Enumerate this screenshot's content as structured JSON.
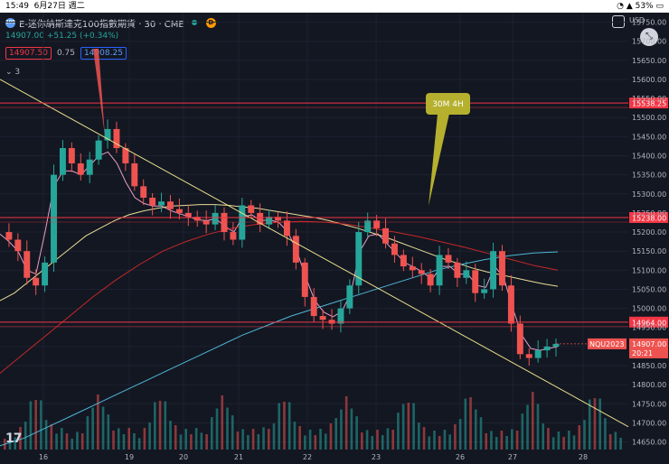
{
  "status_bar": {
    "time": "15:49",
    "date": "6月27日 週二",
    "battery": "53%"
  },
  "header": {
    "logo": "100",
    "symbol_title": "E-迷你納斯達克100指數期貨 · 30 · CME",
    "current_price": "14907.00",
    "change": "+51.25 (+0.34%)",
    "bid": "14907.50",
    "spread": "0.75",
    "ask": "14908.25",
    "indicator_count": "3",
    "currency": "USD"
  },
  "badges": {
    "d": "D"
  },
  "annotations": {
    "callout": "30M 4H"
  },
  "footer_logo": "17",
  "colors": {
    "bg": "#131722",
    "up": "#26a69a",
    "down": "#ef5350",
    "hline": "#f23645",
    "trend": "#e8e08a",
    "ma_pink": "#e6a0c8",
    "ma_yellow": "#e8dc96",
    "ma_red": "#c62828",
    "ma_teal": "#4fb7d6",
    "callout": "#b5b02e"
  },
  "chart_data": {
    "type": "candlestick",
    "x_tick_labels": [
      "16",
      "19",
      "20",
      "21",
      "22",
      "23",
      "26",
      "27",
      "28"
    ],
    "y_tick_labels": [
      "14650.00",
      "14700.00",
      "14750.00",
      "14800.00",
      "14850.00",
      "14900.00",
      "14950.00",
      "15000.00",
      "15050.00",
      "15100.00",
      "15150.00",
      "15200.00",
      "15250.00",
      "15300.00",
      "15350.00",
      "15400.00",
      "15450.00",
      "15500.00",
      "15550.00",
      "15600.00",
      "15650.00",
      "15700.00",
      "15750.00"
    ],
    "ylim": [
      14630,
      15775
    ],
    "horizontal_levels": [
      {
        "label": "15538.25",
        "value": 15538.25
      },
      {
        "label": "15238.00",
        "value": 15238.0
      },
      {
        "label": "14964.00",
        "value": 14964.0
      }
    ],
    "current_price_tag": {
      "symbol": "NQU2023",
      "price": "14907.00",
      "countdown": "20:21",
      "value": 14907.0
    },
    "close_path": [
      15200,
      15180,
      15150,
      15080,
      15060,
      15120,
      15350,
      15420,
      15380,
      15350,
      15390,
      15440,
      15470,
      15420,
      15380,
      15320,
      15290,
      15270,
      15280,
      15260,
      15250,
      15240,
      15230,
      15220,
      15250,
      15200,
      15180,
      15270,
      15250,
      15220,
      15240,
      15230,
      15190,
      15120,
      15030,
      14980,
      14970,
      14960,
      15000,
      15060,
      15200,
      15230,
      15210,
      15170,
      15140,
      15110,
      15100,
      15090,
      15060,
      15140,
      15120,
      15080,
      15100,
      15040,
      15050,
      15150,
      15060,
      14960,
      14880,
      14870,
      14890,
      14900,
      14907
    ],
    "ma_series": [
      {
        "color": "pink",
        "values": [
          15195,
          15175,
          15150,
          15100,
          15090,
          15200,
          15320,
          15360,
          15360,
          15350,
          15375,
          15400,
          15410,
          15380,
          15330,
          15290,
          15275,
          15268,
          15268,
          15256,
          15248,
          15240,
          15232,
          15230,
          15235,
          15215,
          15200,
          15240,
          15245,
          15230,
          15232,
          15225,
          15200,
          15150,
          15080,
          15020,
          14990,
          14978,
          14992,
          15040,
          15150,
          15190,
          15195,
          15170,
          15145,
          15120,
          15108,
          15095,
          15075,
          15110,
          15110,
          15090,
          15090,
          15060,
          15055,
          15110,
          15080,
          15000,
          14930,
          14895,
          14890,
          14895,
          14900
        ]
      },
      {
        "color": "yellow",
        "values": [
          15020,
          15040,
          15070,
          15100,
          15130,
          15160,
          15190,
          15210,
          15230,
          15245,
          15255,
          15262,
          15268,
          15270,
          15272,
          15272,
          15270,
          15266,
          15262,
          15256,
          15250,
          15244,
          15238,
          15230,
          15220,
          15210,
          15198,
          15186,
          15172,
          15158,
          15144,
          15130,
          15118,
          15106,
          15096,
          15088,
          15080,
          15072,
          15064,
          15058
        ]
      },
      {
        "color": "red",
        "values": [
          14830,
          14880,
          14930,
          14980,
          15030,
          15075,
          15115,
          15150,
          15175,
          15195,
          15210,
          15220,
          15226,
          15228,
          15226,
          15220,
          15210,
          15200,
          15188,
          15174,
          15160,
          15144,
          15128,
          15112,
          15100
        ]
      },
      {
        "color": "teal",
        "values": [
          14640,
          14660,
          14690,
          14720,
          14750,
          14780,
          14810,
          14840,
          14870,
          14900,
          14930,
          14955,
          14980,
          15000,
          15020,
          15040,
          15060,
          15080,
          15100,
          15115,
          15128,
          15138,
          15145,
          15148
        ]
      }
    ],
    "trendline": {
      "from": [
        0,
        15600
      ],
      "to": [
        1,
        14690
      ]
    },
    "volume_note": "volume histogram at bottom"
  }
}
